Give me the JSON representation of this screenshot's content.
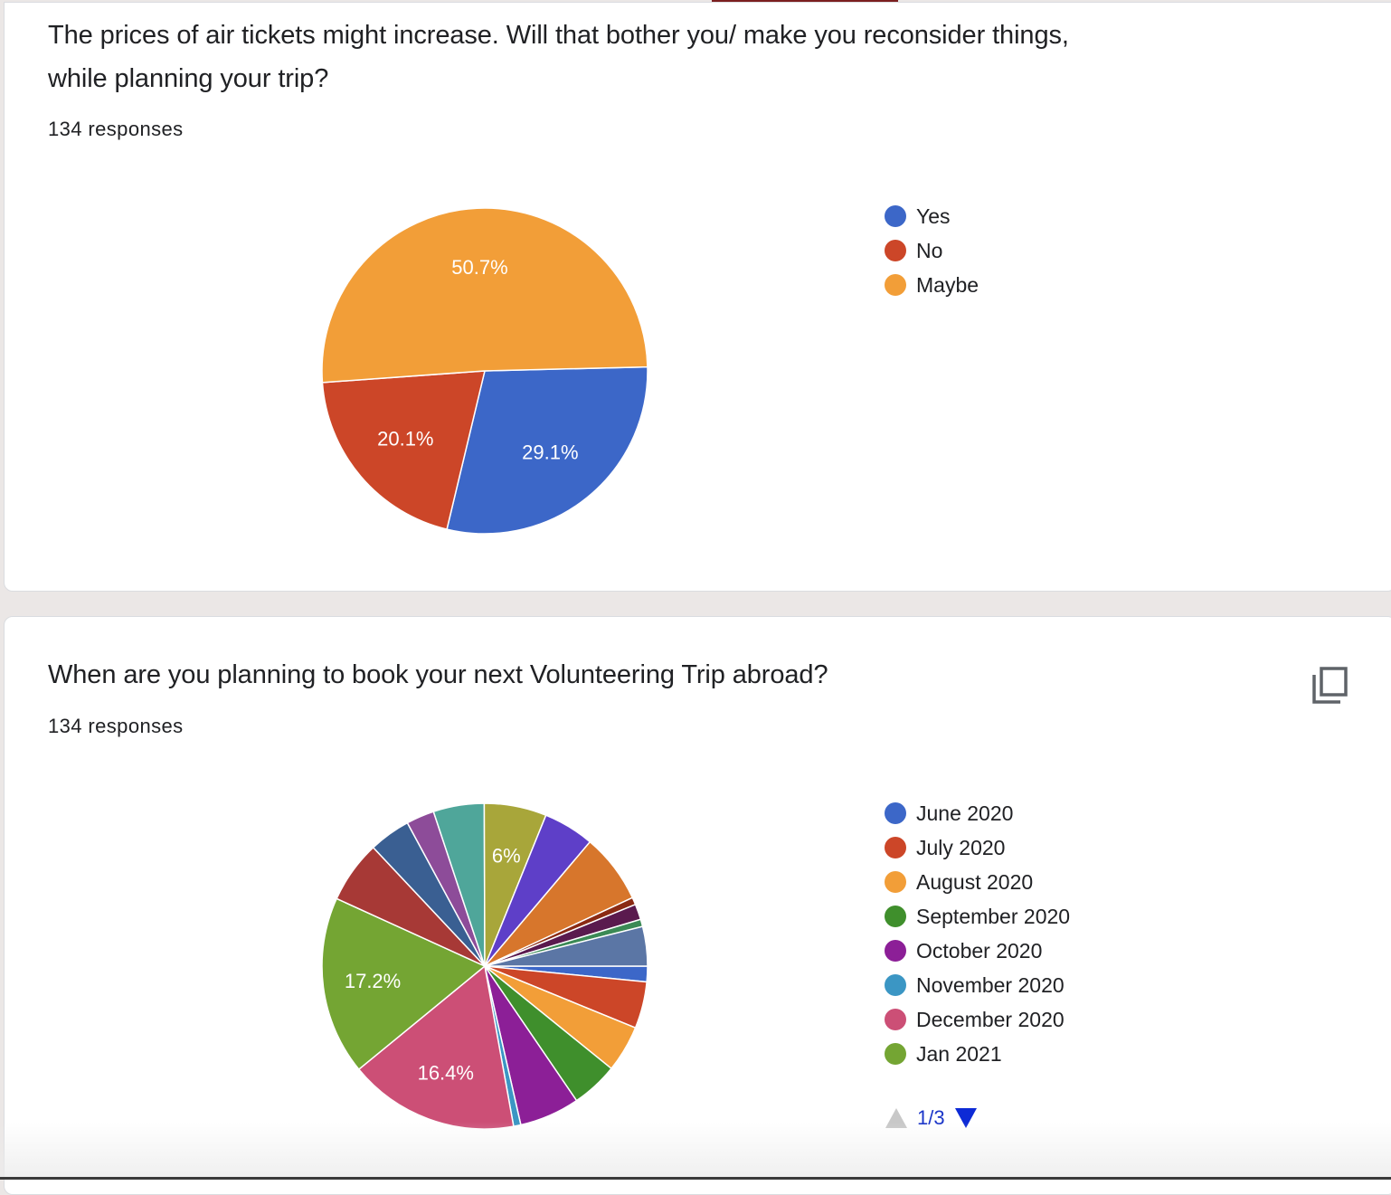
{
  "cards": [
    {
      "title_line1": "The prices of air tickets might increase. Will that bother you/ make you reconsider things,",
      "title_line2": "while planning your trip?",
      "responses": "134 responses",
      "chart_data": {
        "type": "pie",
        "categories": [
          "Yes",
          "No",
          "Maybe"
        ],
        "values": [
          29.1,
          20.1,
          50.7
        ],
        "colors": [
          "#3c67c8",
          "#cc4628",
          "#f29e38"
        ],
        "labels": [
          "29.1%",
          "20.1%",
          "50.7%"
        ]
      },
      "legend": [
        {
          "label": "Yes",
          "color": "#3c67c8"
        },
        {
          "label": "No",
          "color": "#cc4628"
        },
        {
          "label": "Maybe",
          "color": "#f29e38"
        }
      ]
    },
    {
      "title_line1": "When are you planning to book your next Volunteering Trip abroad?",
      "responses": "134 responses",
      "copy_icon": "copy-icon",
      "chart_data": {
        "type": "pie",
        "values": [
          1.5,
          4.5,
          4.5,
          4.5,
          5.8,
          0.7,
          16.4,
          17.2,
          6.0,
          4.0,
          2.7,
          4.9,
          6.0,
          4.9,
          6.7,
          0.7,
          1.5,
          0.7,
          3.8
        ],
        "colors": [
          "#3c67c8",
          "#cc4628",
          "#f29e38",
          "#3f8f2c",
          "#8c1f97",
          "#3b96c4",
          "#cc4f76",
          "#74a533",
          "#a73936",
          "#3a5f92",
          "#8d4c99",
          "#4fa69a",
          "#a8a63a",
          "#5e3fc8",
          "#d7762c",
          "#8a2a13",
          "#5a1a4e",
          "#3b8a55",
          "#5b76a5"
        ],
        "labels": [
          "",
          "",
          "",
          "",
          "",
          "",
          "16.4%",
          "17.2%",
          "",
          "",
          "",
          "",
          "6%",
          "",
          "",
          "",
          "",
          "",
          ""
        ]
      },
      "legend": [
        {
          "label": "June 2020",
          "color": "#3c67c8"
        },
        {
          "label": "July 2020",
          "color": "#cc4628"
        },
        {
          "label": "August 2020",
          "color": "#f29e38"
        },
        {
          "label": "September 2020",
          "color": "#3f8f2c"
        },
        {
          "label": "October 2020",
          "color": "#8c1f97"
        },
        {
          "label": "November 2020",
          "color": "#3b96c4"
        },
        {
          "label": "December 2020",
          "color": "#cc4f76"
        },
        {
          "label": "Jan 2021",
          "color": "#74a533"
        }
      ],
      "pager": {
        "text": "1/3"
      }
    }
  ]
}
